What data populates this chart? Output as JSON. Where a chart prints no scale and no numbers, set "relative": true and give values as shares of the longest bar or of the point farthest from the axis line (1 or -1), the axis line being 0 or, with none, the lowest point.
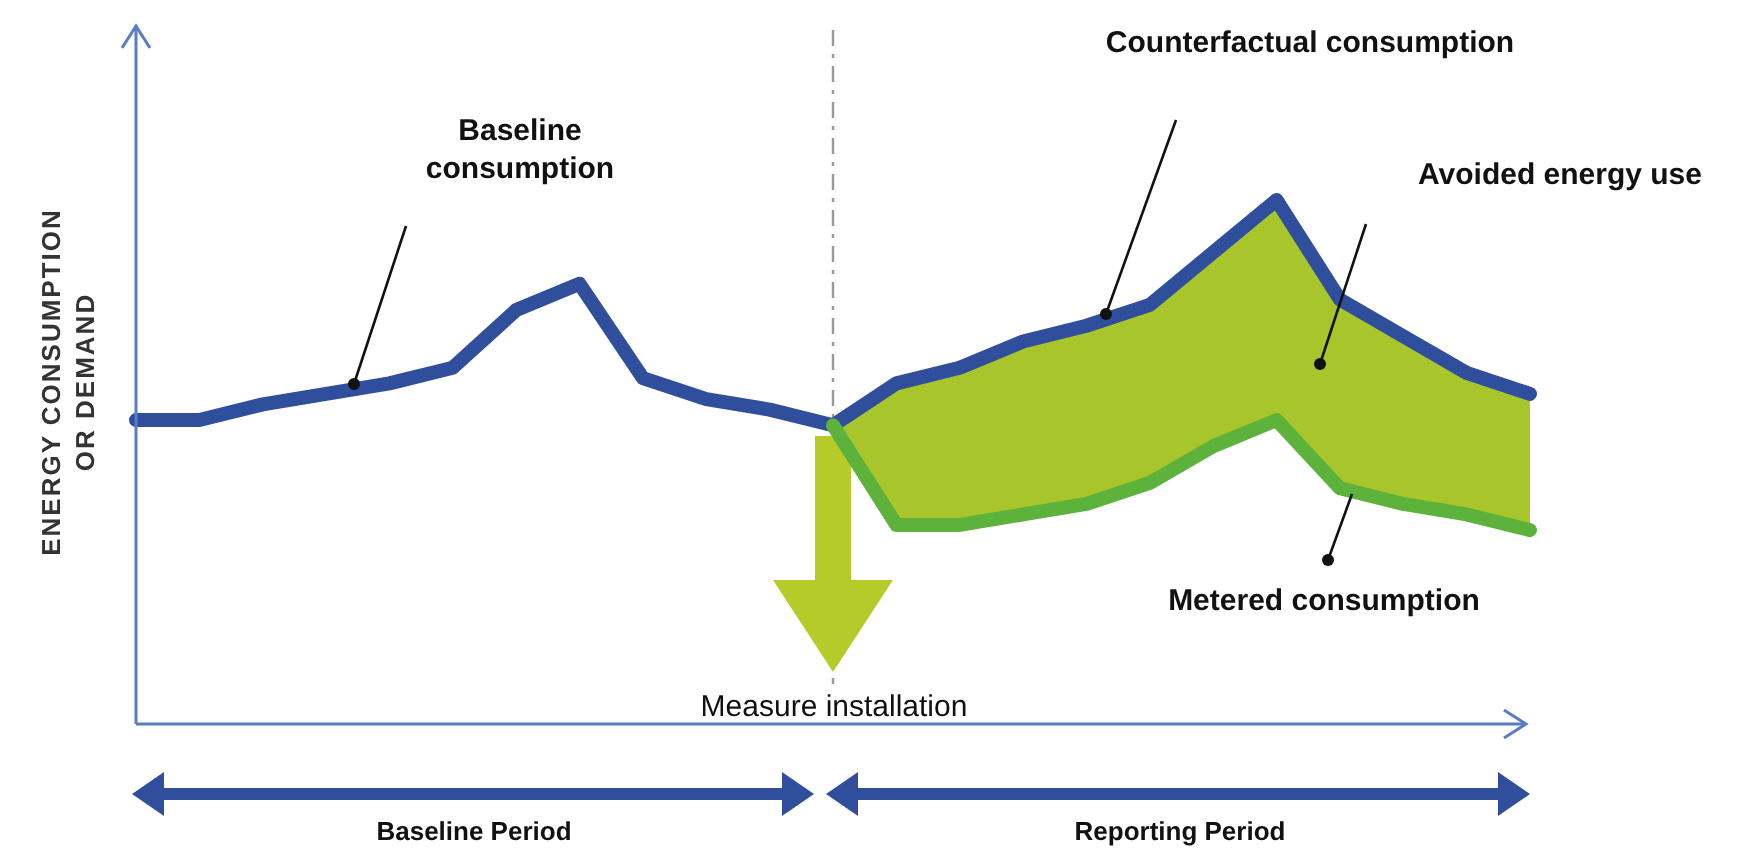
{
  "chart_data": {
    "type": "line",
    "relative": true,
    "ylabel": "ENERGY CONSUMPTION OR DEMAND",
    "categories": [
      null,
      null,
      null,
      null,
      null,
      null,
      null,
      null,
      null,
      null,
      null,
      null,
      null,
      null,
      null,
      null,
      null,
      null,
      null,
      null,
      null,
      null,
      null
    ],
    "series": [
      {
        "type": "area",
        "color": "#a8c62c",
        "values": [
          null,
          null,
          null,
          null,
          null,
          null,
          null,
          null,
          null,
          null,
          null,
          0.57,
          0.65,
          0.68,
          0.73,
          0.76,
          0.8,
          0.9,
          1.0,
          0.81,
          0.74,
          0.67,
          0.63
        ]
      },
      {
        "color": "#2f4f9c",
        "values": [
          0.58,
          0.58,
          0.61,
          0.63,
          0.65,
          0.68,
          0.79,
          0.84,
          0.66,
          0.62,
          0.6,
          0.57,
          null,
          null,
          null,
          null,
          null,
          null,
          null,
          null,
          null,
          null,
          null
        ]
      },
      {
        "color": "#2f4f9c",
        "values": [
          null,
          null,
          null,
          null,
          null,
          null,
          null,
          null,
          null,
          null,
          null,
          0.57,
          0.65,
          0.68,
          0.73,
          0.76,
          0.8,
          0.9,
          1.0,
          0.81,
          0.74,
          0.67,
          0.63
        ]
      },
      {
        "color": "#5cb23a",
        "values": [
          null,
          null,
          null,
          null,
          null,
          null,
          null,
          null,
          null,
          null,
          null,
          0.57,
          0.38,
          0.38,
          0.4,
          0.42,
          0.46,
          0.53,
          0.58,
          0.45,
          0.42,
          0.4,
          0.37
        ]
      }
    ],
    "annotations": [
      "Baseline consumption",
      "Counterfactual consumption",
      "Avoided energy use",
      "Metered consumption",
      "Baseline Period",
      "Reporting Period",
      "Measure installation"
    ],
    "marker": "none",
    "line_style": "solid"
  }
}
